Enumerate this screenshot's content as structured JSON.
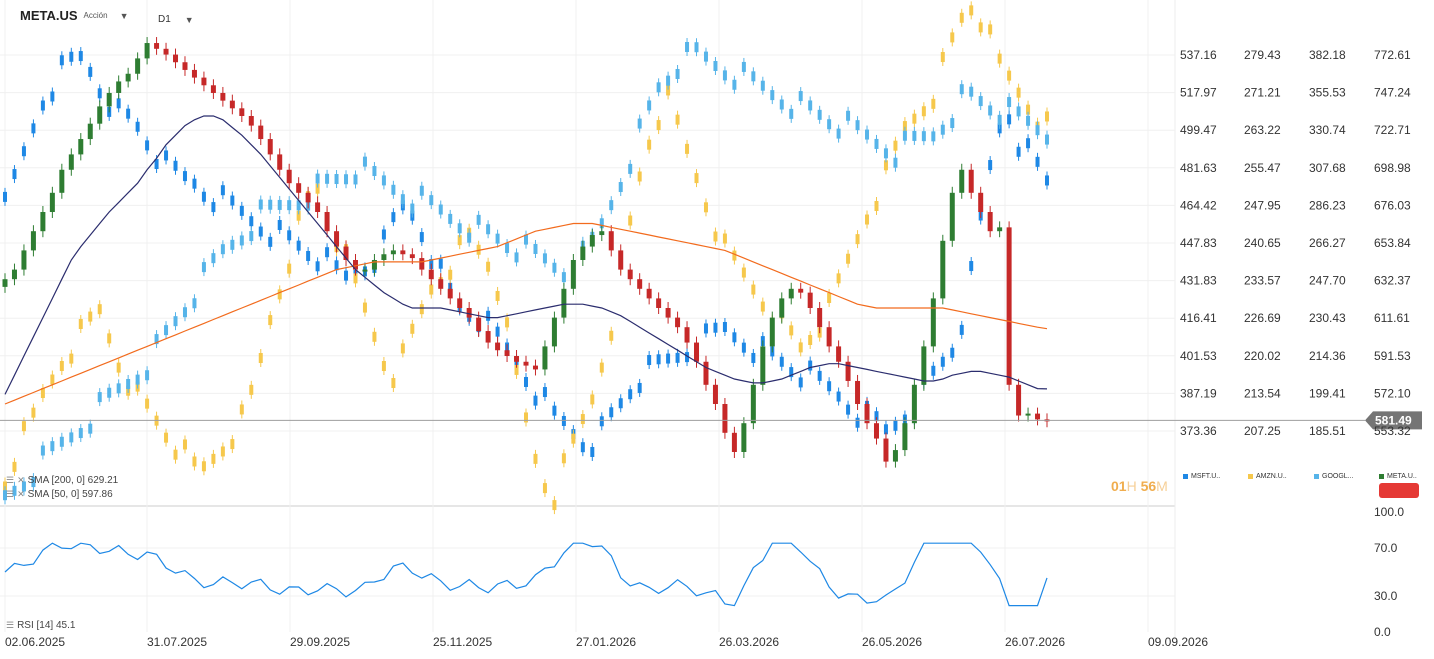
{
  "header": {
    "symbol": "META.US",
    "subtitle": "Acción",
    "timeframe": "D1"
  },
  "indicators": {
    "sma200": "SMA [200, 0] 629.21",
    "sma50": "SMA [50, 0] 597.86",
    "rsi": "RSI [14] 45.1"
  },
  "countdown": {
    "h": "01",
    "h_unit": "H",
    "m": "56",
    "m_unit": "M"
  },
  "colors": {
    "msft": "#1e88e5",
    "amzn": "#f6c84c",
    "goog": "#56b4e9",
    "meta_up": "#2e7d32",
    "meta_down": "#c62828",
    "sma50": "#2b2d6e",
    "sma200": "#f26b1d",
    "rsi": "#1e88e5",
    "current_tag": "#757575",
    "red_button": "#e53935"
  },
  "chart_data": {
    "type": "line",
    "title": "",
    "x_ticks": [
      "02.06.2025",
      "31.07.2025",
      "29.09.2025",
      "25.11.2025",
      "27.01.2026",
      "26.03.2026",
      "26.05.2026",
      "26.07.2026",
      "09.09.2026"
    ],
    "legend": [
      {
        "label": "MSFT.U..",
        "color": "#1e88e5"
      },
      {
        "label": "AMZN.U..",
        "color": "#f6c84c"
      },
      {
        "label": "GOOGL...",
        "color": "#56b4e9"
      },
      {
        "label": "META.U..",
        "color": "#2e7d32"
      }
    ],
    "price_scales": [
      {
        "name": "MSFT.US",
        "ticks": [
          "537.16",
          "517.97",
          "499.47",
          "481.63",
          "464.42",
          "447.83",
          "431.83",
          "416.41",
          "401.53",
          "387.19",
          "373.36"
        ]
      },
      {
        "name": "AMZN.US",
        "ticks": [
          "279.43",
          "271.21",
          "263.22",
          "255.47",
          "247.95",
          "240.65",
          "233.57",
          "226.69",
          "220.02",
          "213.54",
          "207.25"
        ]
      },
      {
        "name": "GOOGL.US",
        "ticks": [
          "382.18",
          "355.53",
          "330.74",
          "307.68",
          "286.23",
          "266.27",
          "247.70",
          "230.43",
          "214.36",
          "199.41",
          "185.51"
        ]
      },
      {
        "name": "META.US",
        "ticks": [
          "772.61",
          "747.24",
          "722.71",
          "698.98",
          "676.03",
          "653.84",
          "632.37",
          "611.61",
          "591.53",
          "572.10",
          "553.32"
        ]
      }
    ],
    "current_price": "581.49",
    "rsi_ticks": [
      "100.0",
      "70.0",
      "30.0",
      "0.0"
    ],
    "ylim_meta": [
      540,
      790
    ],
    "series": [
      {
        "name": "META.US",
        "type": "candlestick",
        "close": [
          655,
          660,
          670,
          680,
          690,
          700,
          712,
          720,
          728,
          736,
          745,
          752,
          758,
          762,
          770,
          778,
          775,
          772,
          768,
          764,
          760,
          756,
          752,
          748,
          744,
          740,
          735,
          728,
          720,
          712,
          705,
          700,
          695,
          690,
          680,
          672,
          665,
          660,
          660,
          665,
          668,
          670,
          668,
          666,
          660,
          655,
          650,
          645,
          640,
          635,
          628,
          622,
          618,
          615,
          612,
          610,
          608,
          620,
          635,
          650,
          665,
          672,
          678,
          680,
          670,
          660,
          655,
          650,
          645,
          640,
          635,
          630,
          622,
          612,
          600,
          590,
          575,
          565,
          580,
          600,
          620,
          635,
          645,
          650,
          648,
          640,
          630,
          620,
          612,
          602,
          590,
          580,
          572,
          560,
          566,
          580,
          600,
          620,
          645,
          675,
          700,
          712,
          700,
          690,
          680,
          682,
          600,
          584,
          585,
          582,
          581
        ],
        "sma50": [
          595,
          605,
          615,
          625,
          635,
          645,
          655,
          665,
          672,
          678,
          684,
          690,
          695,
          700,
          705,
          712,
          718,
          725,
          730,
          735,
          738,
          740,
          740,
          738,
          734,
          730,
          725,
          720,
          714,
          708,
          702,
          696,
          690,
          684,
          678,
          672,
          666,
          660,
          656,
          652,
          648,
          645,
          642,
          640,
          640,
          640,
          640,
          639,
          638,
          637,
          636,
          635,
          635,
          636,
          637,
          638,
          639,
          640,
          641,
          642,
          642,
          642,
          641,
          640,
          638,
          636,
          633,
          630,
          627,
          624,
          621,
          618,
          615,
          612,
          609,
          607,
          605,
          603,
          602,
          601,
          601,
          602,
          603,
          605,
          607,
          609,
          610,
          611,
          611,
          610,
          609,
          608,
          607,
          606,
          605,
          604,
          603,
          602,
          602,
          603,
          605,
          606,
          607,
          607,
          606,
          605,
          604,
          602,
          600,
          598,
          597.86
        ],
        "sma200": [
          590,
          592,
          594,
          596,
          598,
          600,
          602,
          604,
          606,
          608,
          610,
          612,
          614,
          616,
          618,
          620,
          622,
          624,
          626,
          628,
          630,
          632,
          634,
          636,
          638,
          640,
          642,
          644,
          646,
          648,
          650,
          652,
          654,
          656,
          658,
          660,
          661,
          662,
          663,
          664,
          664,
          664,
          664,
          664,
          664,
          665,
          666,
          667,
          668,
          669,
          670,
          671,
          672,
          674,
          676,
          678,
          680,
          681,
          682,
          683,
          684,
          684,
          684,
          683,
          682,
          681,
          680,
          679,
          678,
          677,
          676,
          675,
          674,
          673,
          672,
          671,
          670,
          668,
          666,
          664,
          662,
          660,
          658,
          656,
          654,
          652,
          650,
          648,
          646,
          644,
          642,
          641,
          640,
          640,
          640,
          640,
          640,
          640,
          640,
          640,
          639,
          638,
          637,
          636,
          635,
          634,
          633,
          632,
          631,
          630,
          629.21
        ]
      }
    ],
    "overlays": [
      {
        "name": "MSFT.US",
        "close": [
          475,
          485,
          495,
          505,
          515,
          520,
          525,
          528,
          530,
          526,
          520,
          515,
          510,
          508,
          505,
          500,
          495,
          490,
          488,
          486,
          485,
          482,
          480,
          478,
          476,
          474,
          472,
          470,
          468,
          466,
          464,
          462,
          460,
          458,
          455,
          452,
          450,
          452,
          455,
          458,
          462,
          470,
          476,
          474,
          468,
          460,
          452,
          445,
          440,
          438,
          436,
          432,
          428,
          424,
          420,
          415,
          410,
          405,
          400,
          398,
          395,
          392,
          392,
          395,
          400,
          405,
          410,
          414,
          416,
          418,
          420,
          422,
          424,
          426,
          428,
          430,
          432,
          430,
          428,
          426,
          424,
          422,
          420,
          418,
          416,
          414,
          412,
          410,
          408,
          405,
          402,
          400,
          398,
          395,
          398,
          402,
          405,
          410,
          415,
          420,
          425,
          435,
          450,
          470,
          490,
          505,
          510,
          500,
          495,
          490,
          485
        ]
      },
      {
        "name": "AMZN.US",
        "close": [
          208,
          212,
          215,
          218,
          222,
          225,
          228,
          230,
          232,
          234,
          236,
          232,
          228,
          225,
          222,
          220,
          218,
          216,
          214,
          212,
          210,
          210,
          212,
          214,
          216,
          218,
          222,
          228,
          235,
          240,
          245,
          250,
          254,
          256,
          252,
          248,
          244,
          240,
          236,
          232,
          228,
          226,
          228,
          232,
          236,
          240,
          242,
          244,
          246,
          248,
          246,
          244,
          240,
          232,
          225,
          218,
          212,
          208,
          206,
          210,
          214,
          218,
          222,
          228,
          234,
          242,
          250,
          258,
          264,
          268,
          270,
          266,
          262,
          258,
          254,
          250,
          246,
          244,
          242,
          240,
          238,
          236,
          234,
          232,
          230,
          232,
          234,
          236,
          240,
          244,
          248,
          252,
          255,
          258,
          262,
          266,
          268,
          270,
          272,
          276,
          280,
          284,
          286,
          284,
          280,
          276,
          274,
          272,
          270,
          268,
          266
        ]
      },
      {
        "name": "GOOGL.US",
        "close": [
          180,
          184,
          188,
          192,
          196,
          200,
          204,
          208,
          212,
          216,
          220,
          224,
          228,
          232,
          236,
          240,
          246,
          252,
          258,
          264,
          270,
          276,
          282,
          288,
          292,
          296,
          300,
          304,
          306,
          308,
          310,
          312,
          314,
          316,
          318,
          320,
          322,
          324,
          322,
          320,
          318,
          316,
          314,
          312,
          310,
          308,
          306,
          304,
          302,
          300,
          298,
          296,
          294,
          292,
          290,
          288,
          286,
          284,
          282,
          280,
          282,
          286,
          292,
          300,
          310,
          320,
          330,
          340,
          350,
          360,
          365,
          370,
          372,
          374,
          372,
          370,
          368,
          366,
          364,
          362,
          360,
          358,
          356,
          354,
          352,
          350,
          348,
          346,
          344,
          342,
          340,
          338,
          336,
          334,
          332,
          334,
          336,
          338,
          340,
          345,
          350,
          355,
          356,
          354,
          352,
          350,
          348,
          346,
          344,
          342,
          340
        ]
      }
    ]
  }
}
